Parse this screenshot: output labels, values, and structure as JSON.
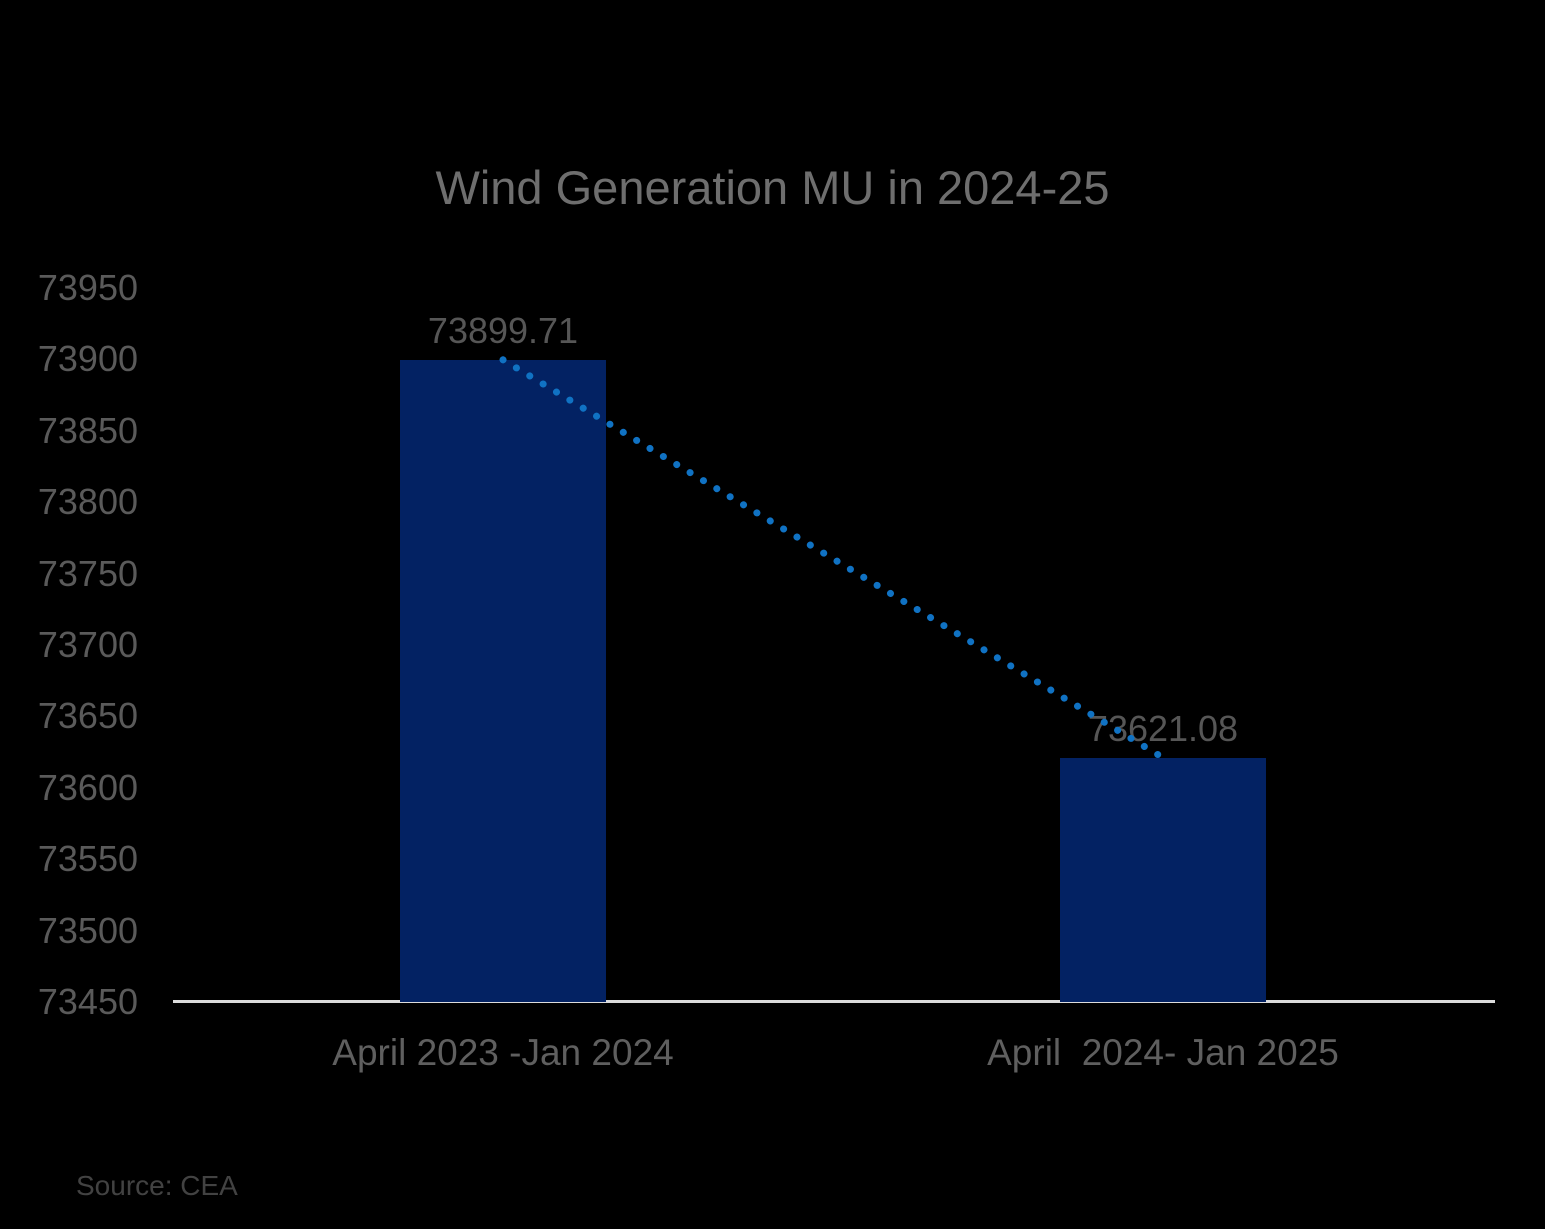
{
  "title": "Wind Generation MU in 2024-25",
  "source": "Source: CEA",
  "chart_data": {
    "type": "bar",
    "title": "Wind Generation MU in 2024-25",
    "categories": [
      "April 2023 -Jan 2024",
      "April  2024- Jan 2025"
    ],
    "series": [
      {
        "name": "Wind Generation MU",
        "values": [
          73899.71,
          73621.08
        ]
      }
    ],
    "data_labels": [
      "73899.71",
      "73621.08"
    ],
    "xlabel": "",
    "ylabel": "",
    "ylim": [
      73450,
      73950
    ],
    "ytick_step": 50,
    "yticks": [
      "73450",
      "73500",
      "73550",
      "73600",
      "73650",
      "73700",
      "73750",
      "73800",
      "73850",
      "73900",
      "73950"
    ],
    "grid": false,
    "legend_position": "none",
    "trendline": {
      "style": "dotted",
      "from": 73899.71,
      "to": 73621.08
    },
    "colors": {
      "bar": "#032263",
      "trend_dots": "#1072c3",
      "axis_line": "#dcdcdc",
      "text": "#5a5a5a",
      "title_text": "#6e6e6e",
      "background": "#000000"
    }
  }
}
